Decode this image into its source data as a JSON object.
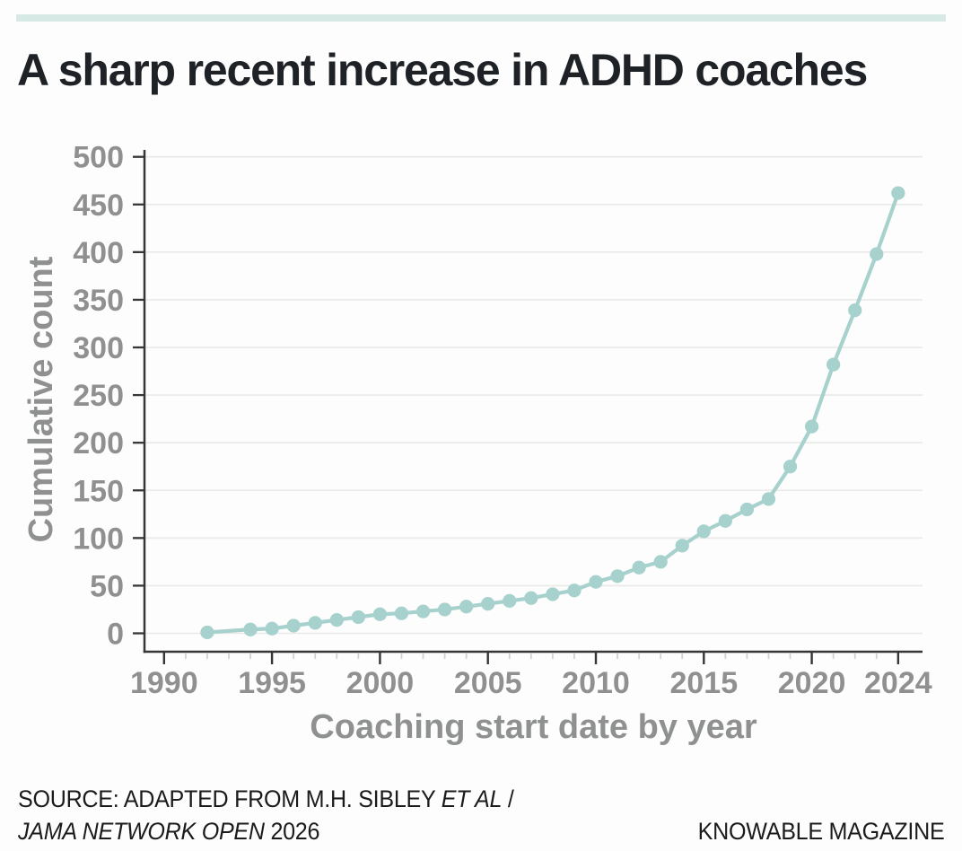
{
  "page": {
    "background": "#fdfdfd"
  },
  "accent_bar": {
    "color": "#d6e9e5"
  },
  "title": "A sharp recent increase in ADHD coaches",
  "chart_data": {
    "type": "line",
    "title": "A sharp recent increase in ADHD coaches",
    "xlabel": "Coaching start date by year",
    "ylabel": "Cumulative count",
    "x": [
      1992,
      1994,
      1995,
      1996,
      1997,
      1998,
      1999,
      2000,
      2001,
      2002,
      2003,
      2004,
      2005,
      2006,
      2007,
      2008,
      2009,
      2010,
      2011,
      2012,
      2013,
      2014,
      2015,
      2016,
      2017,
      2018,
      2019,
      2020,
      2021,
      2022,
      2023,
      2024
    ],
    "values": [
      1,
      4,
      5,
      8,
      11,
      14,
      17,
      20,
      21,
      23,
      25,
      28,
      31,
      34,
      37,
      41,
      45,
      54,
      60,
      69,
      75,
      92,
      107,
      118,
      130,
      141,
      175,
      217,
      282,
      339,
      398,
      462
    ],
    "ylim": [
      0,
      500
    ],
    "xlim": [
      1990,
      2025
    ],
    "yticks": [
      0,
      50,
      100,
      150,
      200,
      250,
      300,
      350,
      400,
      450,
      500
    ],
    "xticks_major": [
      1990,
      1995,
      2000,
      2005,
      2010,
      2015,
      2020,
      2024
    ],
    "xticks_minor": [
      1991,
      1992,
      1993,
      1994,
      1996,
      1997,
      1998,
      1999,
      2001,
      2002,
      2003,
      2004,
      2006,
      2007,
      2008,
      2009,
      2011,
      2012,
      2013,
      2014,
      2016,
      2017,
      2018,
      2019,
      2021,
      2022,
      2023
    ],
    "grid": "horizontal",
    "legend": "none",
    "marker": "circle"
  },
  "source": {
    "line1_regular": "SOURCE: ADAPTED FROM M.H. SIBLEY ",
    "line1_italic": "ET AL",
    "line1_suffix": " /",
    "line2_italic": "JAMA NETWORK OPEN",
    "line2_regular": " 2026",
    "credit": "KNOWABLE MAGAZINE"
  },
  "colors": {
    "accent_bar": "#d6e9e5",
    "line": "#a6d1cd",
    "axis": "#363636",
    "grid": "#e9e9e7",
    "minor_tick": "#d2d2d0",
    "tick_label": "#909090",
    "axis_title": "#8f9191",
    "title_text": "#1e2125",
    "source_text": "#1b1b1b"
  }
}
